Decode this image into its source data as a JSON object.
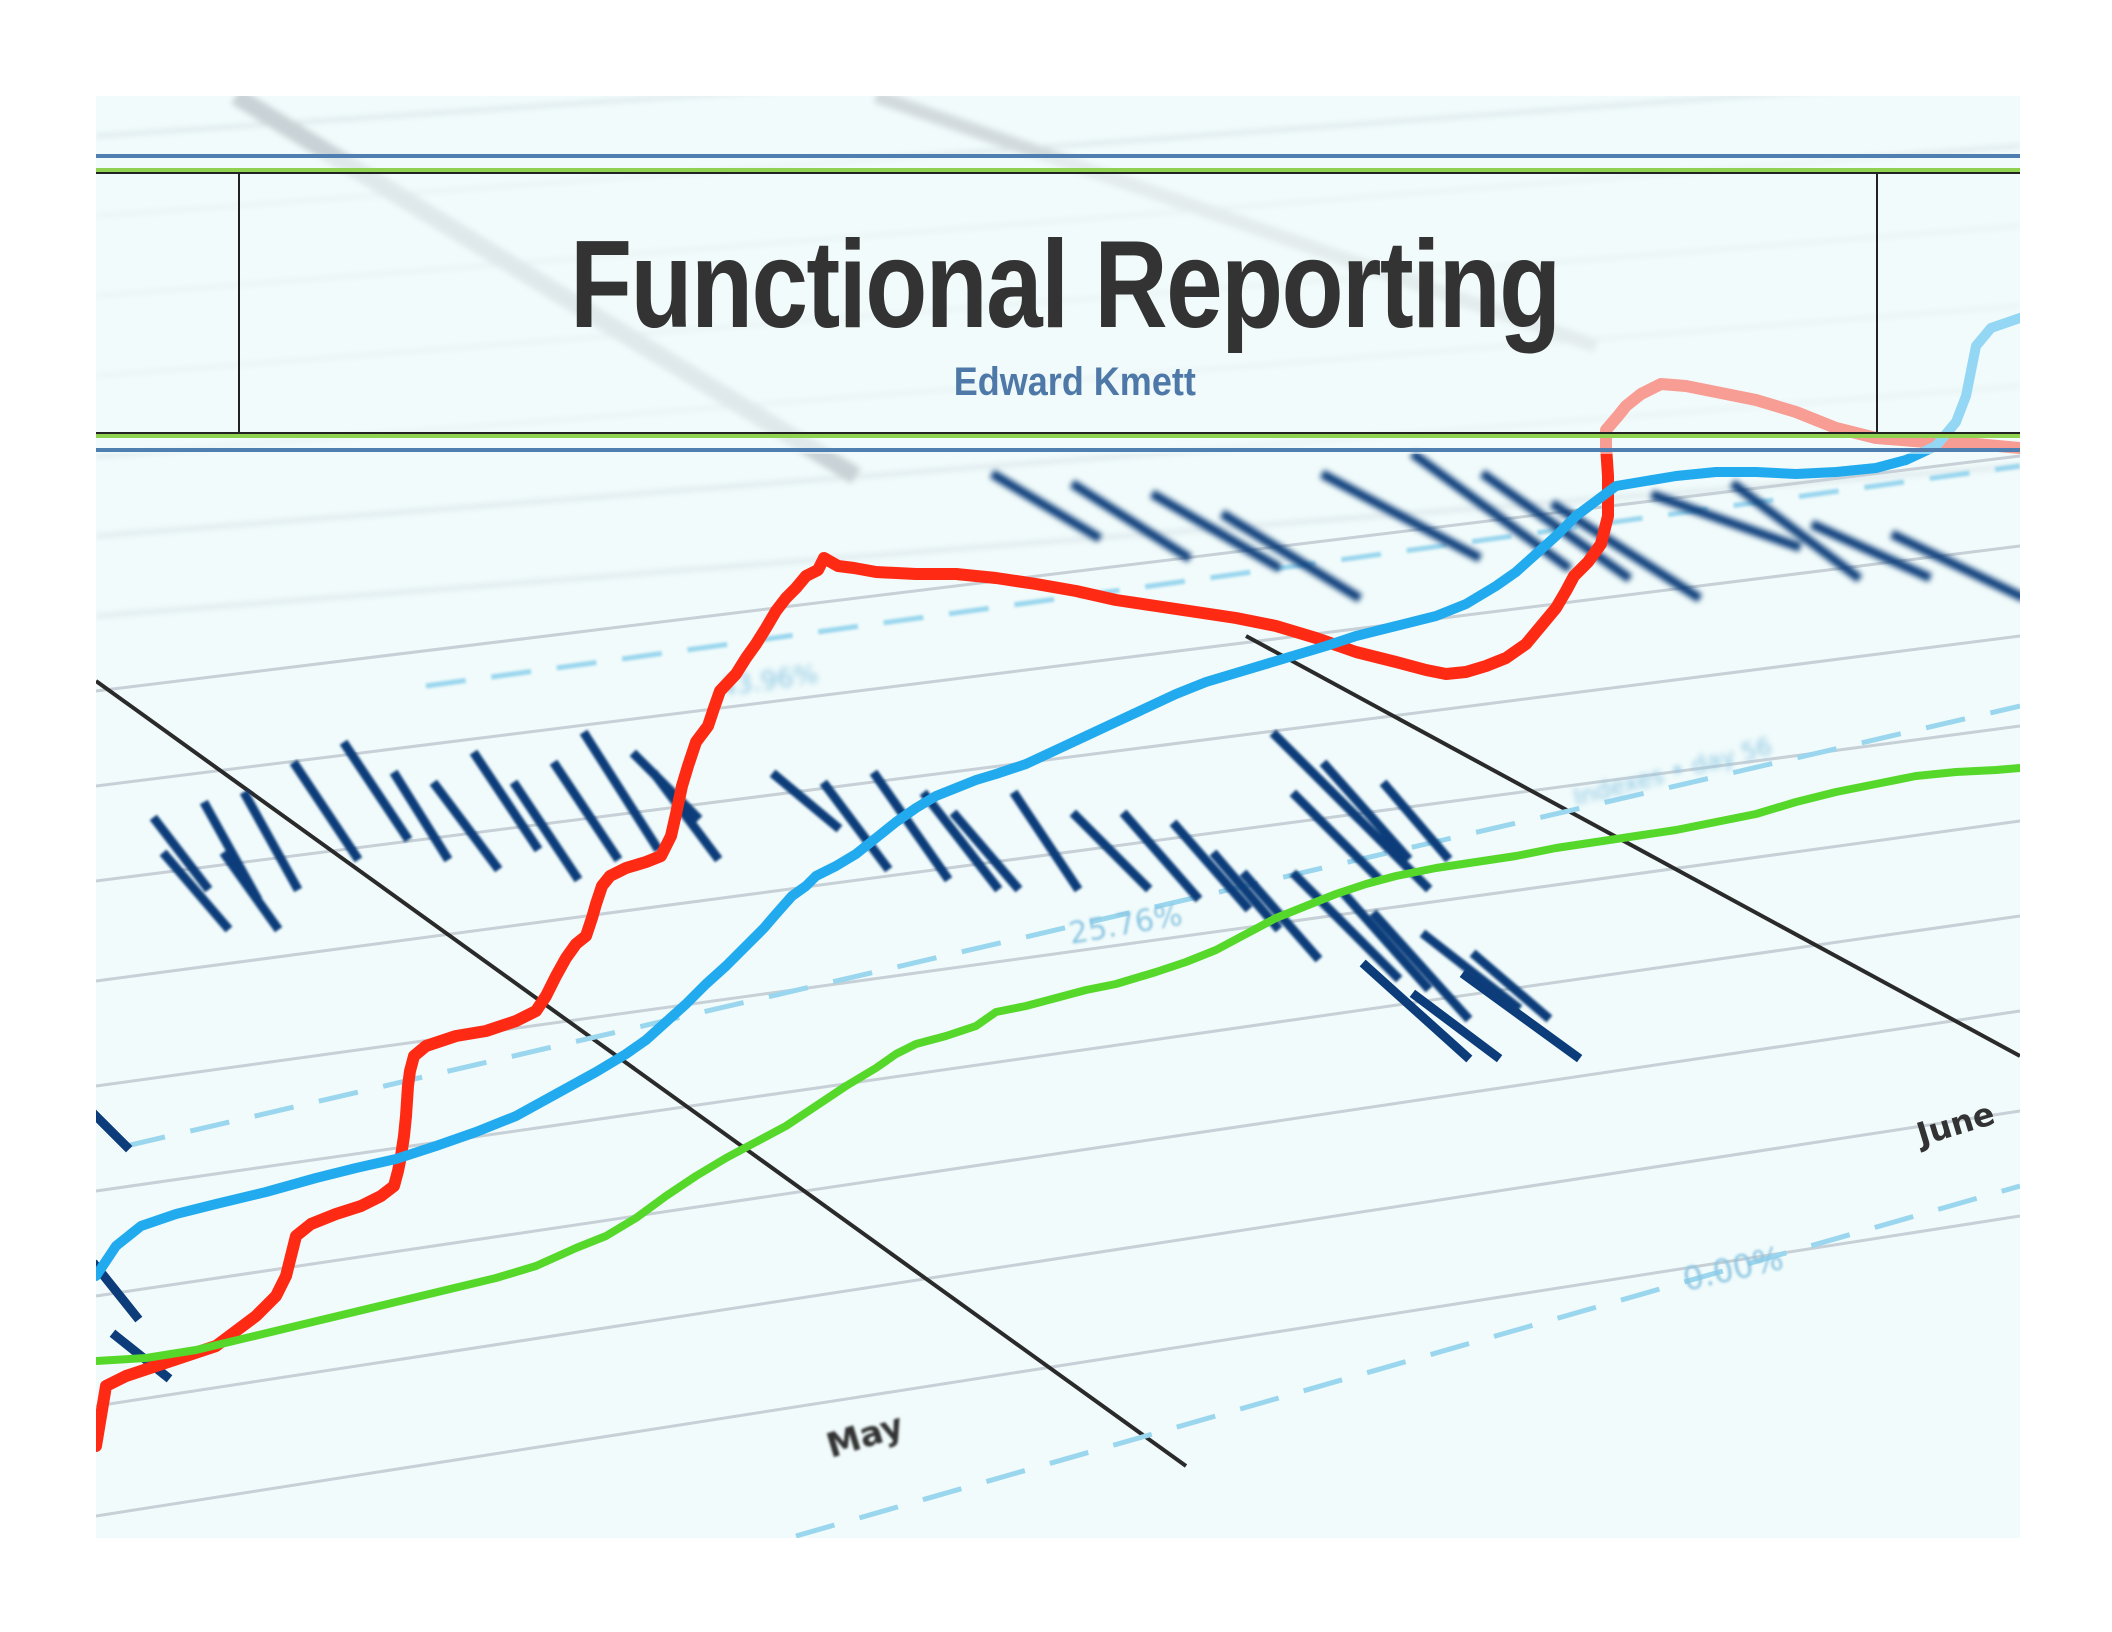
{
  "slide": {
    "title": "Functional Reporting",
    "author": "Edward Kmett"
  },
  "background_chart": {
    "description_labels": {
      "pct_high": "43.96%",
      "pct_mid": "25.76%",
      "pct_low": "0.00%",
      "legend_text": "Indexes • day 56",
      "month_1": "May",
      "month_2": "June"
    },
    "colors": {
      "red_series": "#ff2a14",
      "blue_series": "#22aaee",
      "green_series": "#55d82a",
      "bars": "#0c3d7a",
      "dashed": "#9ad6ee",
      "title_text": "#333333",
      "author_text": "#4e78a7",
      "rule_blue": "#4f7fb0",
      "rule_green": "#8ed24f"
    }
  }
}
